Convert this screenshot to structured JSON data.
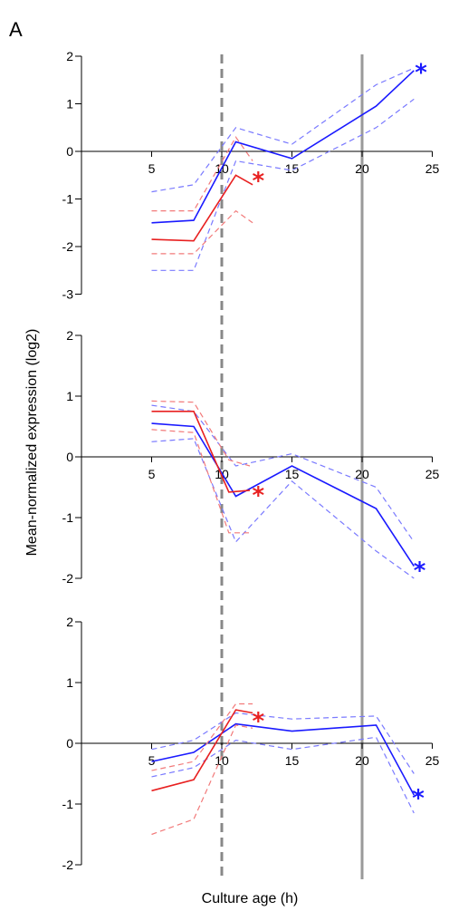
{
  "figure": {
    "panel_label": "A",
    "xlabel": "Culture age (h)",
    "ylabel": "Mean-normalized expression (log2)",
    "annotation_symbol": "*",
    "vlines": [
      {
        "x": 10,
        "style": "dashed",
        "color": "#888888"
      },
      {
        "x": 20,
        "style": "solid",
        "color": "#9a9a9a"
      }
    ],
    "colors": {
      "blue": "#1a1aff",
      "red": "#e82020",
      "blue_band": "#7a7aff",
      "red_band": "#f27a7a"
    }
  },
  "chart_data": [
    {
      "type": "line",
      "xlim": [
        0,
        25
      ],
      "ylim": [
        -3,
        2
      ],
      "yticks": [
        -3,
        -2,
        -1,
        0,
        1,
        2
      ],
      "xticks": [
        5,
        10,
        15,
        20,
        25
      ],
      "series": [
        {
          "color": "blue",
          "style": "solid",
          "x": [
            5,
            8,
            11,
            15,
            21,
            23.7
          ],
          "y": [
            -1.5,
            -1.45,
            0.2,
            -0.15,
            0.95,
            1.7
          ]
        },
        {
          "color": "blue",
          "style": "dashed",
          "x": [
            5,
            8,
            11,
            15,
            21,
            23.7
          ],
          "y": [
            -0.85,
            -0.7,
            0.5,
            0.15,
            1.4,
            1.75
          ]
        },
        {
          "color": "blue",
          "style": "dashed",
          "x": [
            5,
            8,
            11,
            15,
            21,
            23.7
          ],
          "y": [
            -2.5,
            -2.5,
            -0.2,
            -0.4,
            0.5,
            1.1
          ]
        },
        {
          "color": "red",
          "style": "solid",
          "x": [
            5,
            8,
            11,
            12.2
          ],
          "y": [
            -1.85,
            -1.88,
            -0.5,
            -0.7
          ]
        },
        {
          "color": "red",
          "style": "dashed",
          "x": [
            5,
            8,
            11,
            12.2
          ],
          "y": [
            -1.25,
            -1.25,
            0.3,
            -0.2
          ]
        },
        {
          "color": "red",
          "style": "dashed",
          "x": [
            5,
            8,
            11,
            12.2
          ],
          "y": [
            -2.15,
            -2.15,
            -1.25,
            -1.5
          ]
        }
      ],
      "stars": [
        {
          "x": 12.6,
          "y": -0.55,
          "color": "red"
        },
        {
          "x": 24.2,
          "y": 1.72,
          "color": "blue"
        }
      ]
    },
    {
      "type": "line",
      "xlim": [
        0,
        25
      ],
      "ylim": [
        -2,
        2
      ],
      "yticks": [
        -2,
        -1,
        0,
        1,
        2
      ],
      "xticks": [
        5,
        10,
        15,
        20,
        25
      ],
      "series": [
        {
          "color": "blue",
          "style": "solid",
          "x": [
            5,
            8,
            11,
            15,
            21,
            23.7
          ],
          "y": [
            0.55,
            0.5,
            -0.65,
            -0.15,
            -0.85,
            -1.8
          ]
        },
        {
          "color": "blue",
          "style": "dashed",
          "x": [
            5,
            8,
            11,
            15,
            21,
            23.7
          ],
          "y": [
            0.85,
            0.75,
            -0.15,
            0.05,
            -0.5,
            -1.4
          ]
        },
        {
          "color": "blue",
          "style": "dashed",
          "x": [
            5,
            8,
            11,
            15,
            21,
            23.7
          ],
          "y": [
            0.25,
            0.3,
            -1.4,
            -0.4,
            -1.55,
            -2.0
          ]
        },
        {
          "color": "red",
          "style": "solid",
          "x": [
            5,
            8,
            10.5,
            12
          ],
          "y": [
            0.75,
            0.75,
            -0.58,
            -0.55
          ]
        },
        {
          "color": "red",
          "style": "dashed",
          "x": [
            5,
            8,
            10.5,
            12
          ],
          "y": [
            0.92,
            0.9,
            -0.05,
            -0.15
          ]
        },
        {
          "color": "red",
          "style": "dashed",
          "x": [
            5,
            8,
            10.5,
            12
          ],
          "y": [
            0.45,
            0.4,
            -1.25,
            -1.25
          ]
        }
      ],
      "stars": [
        {
          "x": 12.6,
          "y": -0.58,
          "color": "red"
        },
        {
          "x": 24.1,
          "y": -1.82,
          "color": "blue"
        }
      ]
    },
    {
      "type": "line",
      "xlim": [
        0,
        25
      ],
      "ylim": [
        -2,
        2
      ],
      "yticks": [
        -2,
        -1,
        0,
        1,
        2
      ],
      "xticks": [
        5,
        10,
        15,
        20,
        25
      ],
      "series": [
        {
          "color": "blue",
          "style": "solid",
          "x": [
            5,
            8,
            11,
            15,
            21,
            23.7
          ],
          "y": [
            -0.3,
            -0.15,
            0.32,
            0.2,
            0.3,
            -0.85
          ]
        },
        {
          "color": "blue",
          "style": "dashed",
          "x": [
            5,
            8,
            11,
            15,
            21,
            23.7
          ],
          "y": [
            -0.1,
            0.05,
            0.5,
            0.4,
            0.45,
            -0.5
          ]
        },
        {
          "color": "blue",
          "style": "dashed",
          "x": [
            5,
            8,
            11,
            15,
            21,
            23.7
          ],
          "y": [
            -0.55,
            -0.4,
            0.05,
            -0.1,
            0.1,
            -1.15
          ]
        },
        {
          "color": "red",
          "style": "solid",
          "x": [
            5,
            8,
            11,
            12.2
          ],
          "y": [
            -0.78,
            -0.6,
            0.55,
            0.5
          ]
        },
        {
          "color": "red",
          "style": "dashed",
          "x": [
            5,
            8,
            11,
            12.2
          ],
          "y": [
            -0.45,
            -0.3,
            0.65,
            0.65
          ]
        },
        {
          "color": "red",
          "style": "dashed",
          "x": [
            5,
            8,
            11,
            12.2
          ],
          "y": [
            -1.5,
            -1.25,
            0.3,
            0.25
          ]
        }
      ],
      "stars": [
        {
          "x": 12.6,
          "y": 0.42,
          "color": "red"
        },
        {
          "x": 24.0,
          "y": -0.85,
          "color": "blue"
        }
      ]
    }
  ]
}
